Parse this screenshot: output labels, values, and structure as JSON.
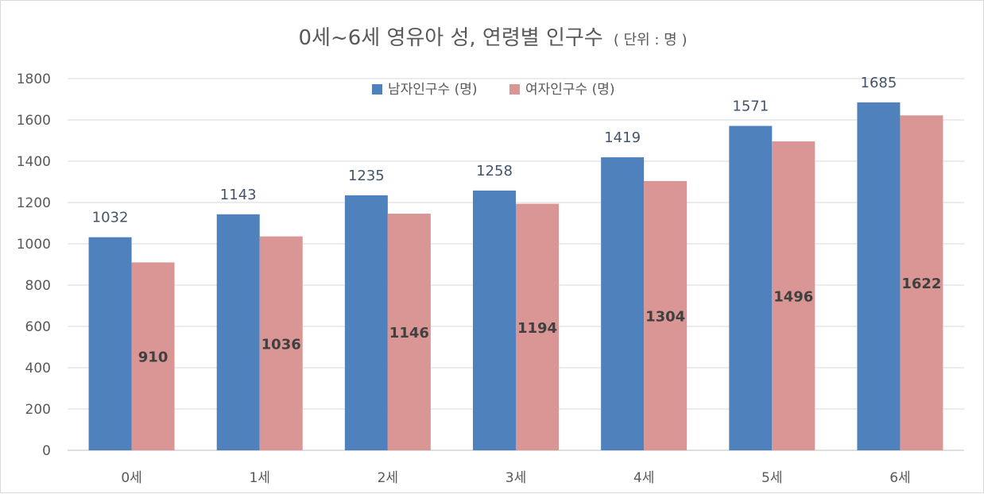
{
  "chart_data": {
    "type": "bar",
    "title": "0세~6세 영유아 성, 연령별 인구수",
    "title_unit": "( 단위 : 명 )",
    "categories": [
      "0세",
      "1세",
      "2세",
      "3세",
      "4세",
      "5세",
      "6세"
    ],
    "series": [
      {
        "name": "남자인구수 (명)",
        "color": "#4f81bd",
        "values": [
          1032,
          1143,
          1235,
          1258,
          1419,
          1571,
          1685
        ]
      },
      {
        "name": "여자인구수 (명)",
        "color": "#d99694",
        "values": [
          910,
          1036,
          1146,
          1194,
          1304,
          1496,
          1622
        ]
      }
    ],
    "ylim": [
      0,
      1800
    ],
    "yticks": [
      0,
      200,
      400,
      600,
      800,
      1000,
      1200,
      1400,
      1600,
      1800
    ],
    "grid": true,
    "legend": "top"
  }
}
